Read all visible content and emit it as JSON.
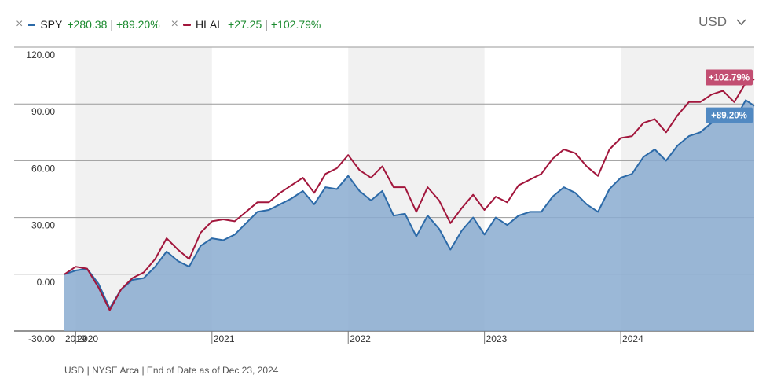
{
  "legend": {
    "remove_glyph": "×",
    "sep": "|",
    "items": [
      {
        "ticker": "SPY",
        "change": "+280.38",
        "pct": "+89.20%"
      },
      {
        "ticker": "HLAL",
        "change": "+27.25",
        "pct": "+102.79%"
      }
    ]
  },
  "currency": {
    "label": "USD",
    "icon": "chevron-down-icon"
  },
  "footer": "USD | NYSE Arca | End of Date as of Dec 23, 2024",
  "colors": {
    "spy": "#2c6aa8",
    "spy_fill": "#8aacd0",
    "hlal": "#a2163c",
    "band": "#f1f1f1",
    "grid": "#9a9a9a"
  },
  "chart_data": {
    "type": "area",
    "x_tick_labels": [
      "2019",
      "2020",
      "2021",
      "2022",
      "2023",
      "2024"
    ],
    "y_tick_labels": [
      "120.00",
      "90.00",
      "60.00",
      "30.00",
      "0.00",
      "-30.00"
    ],
    "ylim": [
      -30,
      120
    ],
    "xlim": [
      2019.917,
      2024.98
    ],
    "grid": true,
    "shaded_years": [
      [
        2020,
        2021
      ],
      [
        2022,
        2023
      ],
      [
        2024,
        2025
      ]
    ],
    "series": [
      {
        "name": "HLAL",
        "end_label": "+102.79%",
        "x": [
          2019.917,
          2020.0,
          2020.083,
          2020.167,
          2020.25,
          2020.333,
          2020.417,
          2020.5,
          2020.583,
          2020.667,
          2020.75,
          2020.833,
          2020.917,
          2021.0,
          2021.083,
          2021.167,
          2021.25,
          2021.333,
          2021.417,
          2021.5,
          2021.583,
          2021.667,
          2021.75,
          2021.833,
          2021.917,
          2022.0,
          2022.083,
          2022.167,
          2022.25,
          2022.333,
          2022.417,
          2022.5,
          2022.583,
          2022.667,
          2022.75,
          2022.833,
          2022.917,
          2023.0,
          2023.083,
          2023.167,
          2023.25,
          2023.333,
          2023.417,
          2023.5,
          2023.583,
          2023.667,
          2023.75,
          2023.833,
          2023.917,
          2024.0,
          2024.083,
          2024.167,
          2024.25,
          2024.333,
          2024.417,
          2024.5,
          2024.583,
          2024.667,
          2024.75,
          2024.833,
          2024.917,
          2024.98
        ],
        "y": [
          0,
          4,
          3,
          -7,
          -19,
          -8,
          -2,
          1,
          8,
          19,
          13,
          8,
          22,
          28,
          29,
          28,
          33,
          38,
          38,
          43,
          47,
          51,
          43,
          53,
          56,
          63,
          55,
          51,
          57,
          46,
          46,
          33,
          46,
          39,
          27,
          35,
          42,
          34,
          41,
          38,
          47,
          50,
          53,
          61,
          66,
          64,
          57,
          52,
          66,
          72,
          73,
          80,
          82,
          75,
          84,
          91,
          91,
          95,
          97,
          91,
          101,
          103
        ]
      },
      {
        "name": "SPY",
        "end_label": "+89.20%",
        "x": [
          2019.917,
          2020.0,
          2020.083,
          2020.167,
          2020.25,
          2020.333,
          2020.417,
          2020.5,
          2020.583,
          2020.667,
          2020.75,
          2020.833,
          2020.917,
          2021.0,
          2021.083,
          2021.167,
          2021.25,
          2021.333,
          2021.417,
          2021.5,
          2021.583,
          2021.667,
          2021.75,
          2021.833,
          2021.917,
          2022.0,
          2022.083,
          2022.167,
          2022.25,
          2022.333,
          2022.417,
          2022.5,
          2022.583,
          2022.667,
          2022.75,
          2022.833,
          2022.917,
          2023.0,
          2023.083,
          2023.167,
          2023.25,
          2023.333,
          2023.417,
          2023.5,
          2023.583,
          2023.667,
          2023.75,
          2023.833,
          2023.917,
          2024.0,
          2024.083,
          2024.167,
          2024.25,
          2024.333,
          2024.417,
          2024.5,
          2024.583,
          2024.667,
          2024.75,
          2024.833,
          2024.917,
          2024.98
        ],
        "y": [
          0,
          2,
          3,
          -5,
          -18,
          -8,
          -3,
          -2,
          4,
          12,
          7,
          4,
          15,
          19,
          18,
          21,
          27,
          33,
          34,
          37,
          40,
          44,
          37,
          46,
          45,
          52,
          44,
          39,
          44,
          31,
          32,
          20,
          31,
          24,
          13,
          23,
          30,
          21,
          30,
          26,
          31,
          33,
          33,
          41,
          46,
          43,
          37,
          33,
          45,
          51,
          53,
          62,
          66,
          60,
          68,
          73,
          75,
          80,
          83,
          81,
          92,
          89
        ]
      }
    ]
  }
}
